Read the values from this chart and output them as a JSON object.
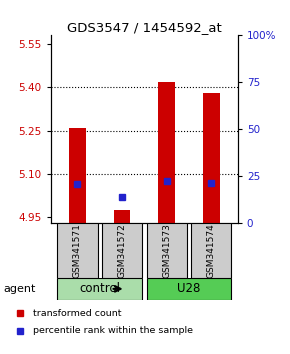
{
  "title": "GDS3547 / 1454592_at",
  "samples": [
    "GSM341571",
    "GSM341572",
    "GSM341573",
    "GSM341574"
  ],
  "ylim_left": [
    4.93,
    5.58
  ],
  "yticks_left": [
    4.95,
    5.1,
    5.25,
    5.4,
    5.55
  ],
  "ylim_right": [
    0,
    100
  ],
  "yticks_right": [
    0,
    25,
    50,
    75,
    100
  ],
  "ytick_labels_right": [
    "0",
    "25",
    "50",
    "75",
    "100%"
  ],
  "bar_bottom": 4.93,
  "red_values": [
    5.26,
    4.975,
    5.42,
    5.38
  ],
  "blue_values": [
    5.065,
    5.02,
    5.075,
    5.07
  ],
  "bar_color": "#CC0000",
  "blue_color": "#2222CC",
  "left_tick_color": "#CC0000",
  "right_tick_color": "#2222CC",
  "agent_label": "agent",
  "legend_red": "transformed count",
  "legend_blue": "percentile rank within the sample",
  "group_spans": [
    [
      1,
      2,
      "control",
      "#AADDAA"
    ],
    [
      3,
      4,
      "U28",
      "#55CC55"
    ]
  ],
  "sample_box_color": "#CCCCCC",
  "gridlines": [
    5.1,
    5.25,
    5.4
  ]
}
